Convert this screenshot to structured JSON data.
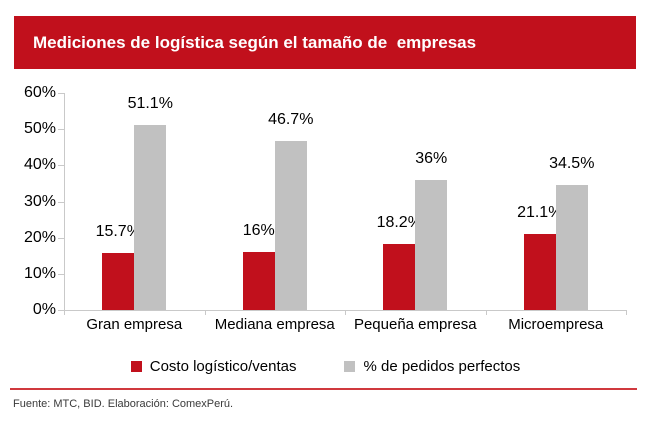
{
  "header": {
    "title": "Mediciones de logística según el tamaño de  empresas",
    "banner_color": "#c1101c"
  },
  "chart_data": {
    "type": "bar",
    "categories": [
      "Gran empresa",
      "Mediana empresa",
      "Pequeña empresa",
      "Microempresa"
    ],
    "series": [
      {
        "name": "Costo logístico/ventas",
        "color": "#c1101c",
        "values": [
          15.7,
          16,
          18.2,
          21.1
        ],
        "labels": [
          "15.7%",
          "16%",
          "18.2%",
          "21.1%"
        ]
      },
      {
        "name": "% de pedidos perfectos",
        "color": "#c1c1c1",
        "values": [
          51.1,
          46.7,
          36,
          34.5
        ],
        "labels": [
          "51.1%",
          "46.7%",
          "36%",
          "34.5%"
        ]
      }
    ],
    "ylabel": "",
    "xlabel": "",
    "ylim": [
      0,
      60
    ],
    "y_axis": {
      "min": 0,
      "max": 60,
      "step": 10,
      "tick_labels": [
        "0%",
        "10%",
        "20%",
        "30%",
        "40%",
        "50%",
        "60%"
      ]
    },
    "grid": false,
    "legend_position": "bottom",
    "axis_color": "#c9c9c9"
  },
  "legend": {
    "items": [
      {
        "label": "Costo logístico/ventas",
        "color": "#c1101c"
      },
      {
        "label": "% de pedidos perfectos",
        "color": "#c1c1c1"
      }
    ]
  },
  "footer": {
    "divider_color": "#d0393e",
    "source": "Fuente: MTC, BID. Elaboración: ComexPerú."
  }
}
